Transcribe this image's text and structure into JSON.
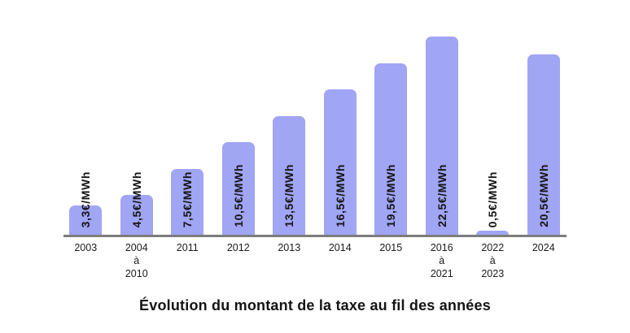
{
  "title": "Évolution du montant de la taxe au fil des années",
  "colors": {
    "bar": "#a0a5f4",
    "axis": "#7c7c7c",
    "text": "#141414"
  },
  "chart_data": {
    "type": "bar",
    "title": "Évolution du montant de la taxe au fil des années",
    "xlabel": "",
    "ylabel": "",
    "unit": "€/MWh",
    "ylim": [
      0,
      22.5
    ],
    "grid": false,
    "legend": false,
    "categories": [
      "2003",
      "2004 à 2010",
      "2011",
      "2012",
      "2013",
      "2014",
      "2015",
      "2016 à 2021",
      "2022 à 2023",
      "2024"
    ],
    "category_lines": [
      [
        "2003"
      ],
      [
        "2004",
        "à",
        "2010"
      ],
      [
        "2011"
      ],
      [
        "2012"
      ],
      [
        "2013"
      ],
      [
        "2014"
      ],
      [
        "2015"
      ],
      [
        "2016",
        "à",
        "2021"
      ],
      [
        "2022",
        "à",
        "2023"
      ],
      [
        "2024"
      ]
    ],
    "values": [
      3.3,
      4.5,
      7.5,
      10.5,
      13.5,
      16.5,
      19.5,
      22.5,
      0.5,
      20.5
    ],
    "value_labels": [
      "3,3€/MWh",
      "4,5€/MWh",
      "7,5€/MWh",
      "10,5€/MWh",
      "13,5€/MWh",
      "16,5€/MWh",
      "19,5€/MWh",
      "22,5€/MWh",
      "0,5€/MWh",
      "20,5€/MWh"
    ]
  }
}
